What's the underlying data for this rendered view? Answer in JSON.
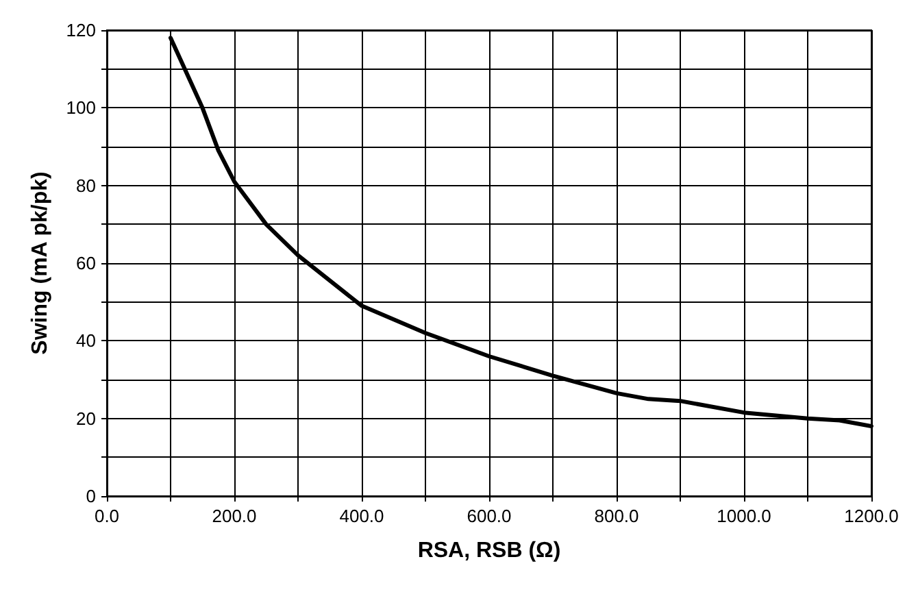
{
  "chart_data": {
    "type": "line",
    "xlabel": "RSA, RSB (Ω)",
    "ylabel": "Swing (mA pk/pk)",
    "x": [
      100,
      150,
      175,
      200,
      250,
      300,
      400,
      500,
      600,
      700,
      800,
      850,
      900,
      1000,
      1100,
      1150,
      1200
    ],
    "series": [
      {
        "color": "#000000",
        "values": [
          118,
          100,
          89,
          81,
          70,
          62,
          49,
          42,
          36,
          31,
          26.5,
          25,
          24.5,
          21.5,
          20,
          19.5,
          18
        ]
      }
    ],
    "xlim": [
      0,
      1200
    ],
    "xticks": [
      {
        "value": 0,
        "label": "0.0"
      },
      {
        "value": 100,
        "label": null
      },
      {
        "value": 200,
        "label": "200.0"
      },
      {
        "value": 300,
        "label": null
      },
      {
        "value": 400,
        "label": "400.0"
      },
      {
        "value": 500,
        "label": null
      },
      {
        "value": 600,
        "label": "600.0"
      },
      {
        "value": 700,
        "label": null
      },
      {
        "value": 800,
        "label": "800.0"
      },
      {
        "value": 900,
        "label": null
      },
      {
        "value": 1000,
        "label": "1000.0"
      },
      {
        "value": 1100,
        "label": null
      },
      {
        "value": 1200,
        "label": "1200.0"
      }
    ],
    "ylim": [
      0,
      120
    ],
    "yticks": [
      0,
      {
        "value": 10,
        "label": null
      },
      20,
      {
        "value": 30,
        "label": null
      },
      40,
      {
        "value": 50,
        "label": null
      },
      60,
      {
        "value": 70,
        "label": null
      },
      80,
      {
        "value": 90,
        "label": null
      },
      100,
      {
        "value": 110,
        "label": null
      },
      120
    ],
    "grid": true,
    "marker": "none",
    "line_style": "solid"
  }
}
